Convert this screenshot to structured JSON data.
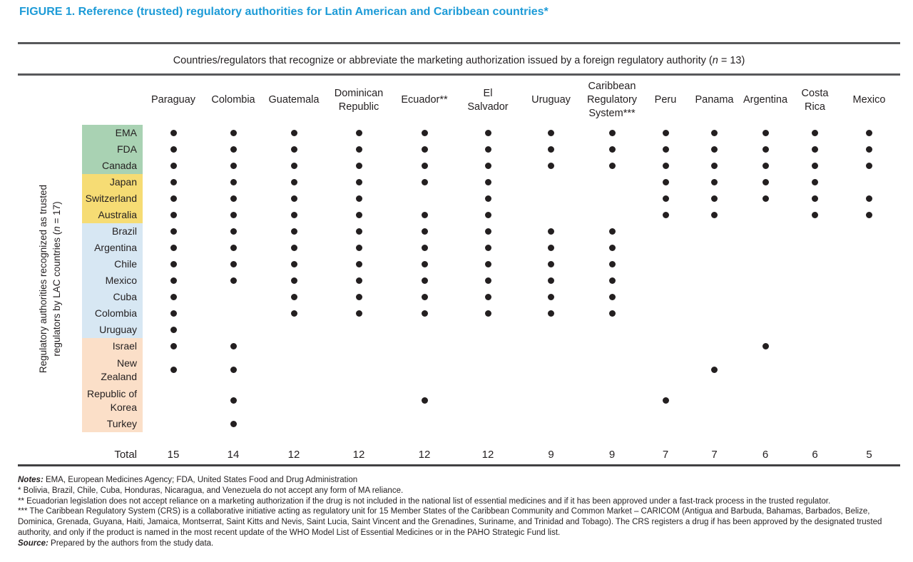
{
  "title": "FIGURE 1. Reference (trusted) regulatory authorities for Latin American and Caribbean countries*",
  "band_header": {
    "pre": "Countries/regulators that recognize or abbreviate the marketing authorization issued by a foreign regulatory authority (",
    "n": "n",
    "post": " = 13)"
  },
  "y_axis_label": {
    "line1": "Regulatory authorities recognized as trusted",
    "pre": "regulators by LAC countries (",
    "n": "n",
    "post": " = 17)"
  },
  "total_label": "Total",
  "colors": {
    "title_blue": "#1d9bd7",
    "rule_gray": "#58595b",
    "group_green": "#a9d2b3",
    "group_yellow": "#f6dc74",
    "group_blue": "#d7e7f3",
    "group_peach": "#fbdfc8",
    "dot": "#231f20"
  },
  "chart_data": {
    "type": "table",
    "description": "Dot matrix: columns are LAC countries/regulators that rely on foreign marketing authorizations; rows are trusted regulatory authorities; a dot marks recognition.",
    "columns": [
      "Paraguay",
      "Colombia",
      "Guatemala",
      "Dominican\nRepublic",
      "Ecuador**",
      "El\nSalvador",
      "Uruguay",
      "Caribbean\nRegulatory\nSystem***",
      "Peru",
      "Panama",
      "Argentina",
      "Costa\nRica",
      "Mexico"
    ],
    "rows": [
      {
        "label": "EMA",
        "group": "green",
        "values": [
          1,
          1,
          1,
          1,
          1,
          1,
          1,
          1,
          1,
          1,
          1,
          1,
          1
        ]
      },
      {
        "label": "FDA",
        "group": "green",
        "values": [
          1,
          1,
          1,
          1,
          1,
          1,
          1,
          1,
          1,
          1,
          1,
          1,
          1
        ]
      },
      {
        "label": "Canada",
        "group": "green",
        "values": [
          1,
          1,
          1,
          1,
          1,
          1,
          1,
          1,
          1,
          1,
          1,
          1,
          1
        ]
      },
      {
        "label": "Japan",
        "group": "yellow",
        "values": [
          1,
          1,
          1,
          1,
          1,
          1,
          0,
          0,
          1,
          1,
          1,
          1,
          0
        ]
      },
      {
        "label": "Switzerland",
        "group": "yellow",
        "values": [
          1,
          1,
          1,
          1,
          0,
          1,
          0,
          0,
          1,
          1,
          1,
          1,
          1
        ]
      },
      {
        "label": "Australia",
        "group": "yellow",
        "values": [
          1,
          1,
          1,
          1,
          1,
          1,
          0,
          0,
          1,
          1,
          0,
          1,
          1
        ]
      },
      {
        "label": "Brazil",
        "group": "blue",
        "values": [
          1,
          1,
          1,
          1,
          1,
          1,
          1,
          1,
          0,
          0,
          0,
          0,
          0
        ]
      },
      {
        "label": "Argentina",
        "group": "blue",
        "values": [
          1,
          1,
          1,
          1,
          1,
          1,
          1,
          1,
          0,
          0,
          0,
          0,
          0
        ]
      },
      {
        "label": "Chile",
        "group": "blue",
        "values": [
          1,
          1,
          1,
          1,
          1,
          1,
          1,
          1,
          0,
          0,
          0,
          0,
          0
        ]
      },
      {
        "label": "Mexico",
        "group": "blue",
        "values": [
          1,
          1,
          1,
          1,
          1,
          1,
          1,
          1,
          0,
          0,
          0,
          0,
          0
        ]
      },
      {
        "label": "Cuba",
        "group": "blue",
        "values": [
          1,
          0,
          1,
          1,
          1,
          1,
          1,
          1,
          0,
          0,
          0,
          0,
          0
        ]
      },
      {
        "label": "Colombia",
        "group": "blue",
        "values": [
          1,
          0,
          1,
          1,
          1,
          1,
          1,
          1,
          0,
          0,
          0,
          0,
          0
        ]
      },
      {
        "label": "Uruguay",
        "group": "blue",
        "values": [
          1,
          0,
          0,
          0,
          0,
          0,
          0,
          0,
          0,
          0,
          0,
          0,
          0
        ]
      },
      {
        "label": "Israel",
        "group": "peach",
        "values": [
          1,
          1,
          0,
          0,
          0,
          0,
          0,
          0,
          0,
          0,
          1,
          0,
          0
        ]
      },
      {
        "label": "New\nZealand",
        "group": "peach",
        "values": [
          1,
          1,
          0,
          0,
          0,
          0,
          0,
          0,
          0,
          1,
          0,
          0,
          0
        ]
      },
      {
        "label": "Republic of\nKorea",
        "group": "peach",
        "values": [
          0,
          1,
          0,
          0,
          1,
          0,
          0,
          0,
          1,
          0,
          0,
          0,
          0
        ]
      },
      {
        "label": "Turkey",
        "group": "peach",
        "values": [
          0,
          1,
          0,
          0,
          0,
          0,
          0,
          0,
          0,
          0,
          0,
          0,
          0
        ]
      }
    ],
    "totals": [
      15,
      14,
      12,
      12,
      12,
      12,
      9,
      9,
      7,
      7,
      6,
      6,
      5
    ]
  },
  "notes": [
    {
      "prefix": "Notes:",
      "text": " EMA, European Medicines Agency; FDA, United States Food and Drug Administration"
    },
    {
      "text": "* Bolivia, Brazil, Chile, Cuba, Honduras, Nicaragua, and Venezuela do not accept any form of MA reliance."
    },
    {
      "text": "** Ecuadorian legislation does not accept reliance on a marketing authorization if the drug is not included in the national list of essential medicines and if it has been approved under a fast-track process in the trusted regulator."
    },
    {
      "text": "*** The Caribbean Regulatory System (CRS) is a collaborative initiative acting as regulatory unit for 15 Member States of the Caribbean Community and Common Market – CARICOM (Antigua and Barbuda, Bahamas, Barbados, Belize, Dominica, Grenada, Guyana, Haiti, Jamaica, Montserrat, Saint Kitts and Nevis, Saint Lucia, Saint Vincent and the Grenadines, Suriname, and Trinidad and Tobago). The CRS registers a drug if has been approved by the designated trusted authority, and only if the product is named in the most recent update of the WHO Model List of Essential Medicines or in the PAHO Strategic Fund list."
    },
    {
      "prefix": "Source:",
      "text": " Prepared by the authors from the study data."
    }
  ]
}
